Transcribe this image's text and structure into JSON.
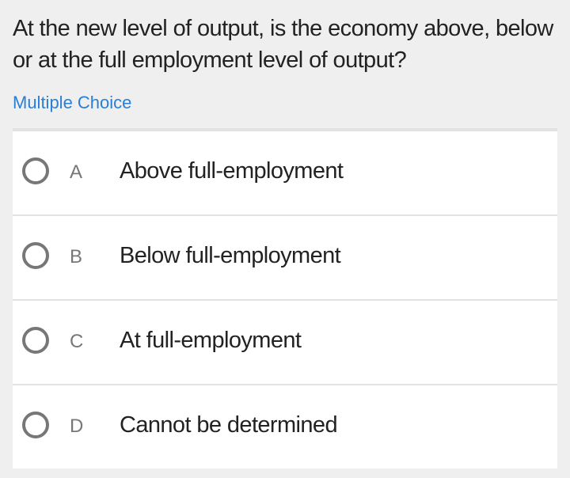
{
  "question": "At the new level of output, is the economy above, below or at the full employment level of output?",
  "question_type": "Multiple Choice",
  "accent_color": "#2a7fd4",
  "options": [
    {
      "letter": "A",
      "text": "Above full-employment"
    },
    {
      "letter": "B",
      "text": "Below full-employment"
    },
    {
      "letter": "C",
      "text": "At full-employment"
    },
    {
      "letter": "D",
      "text": "Cannot be determined"
    }
  ]
}
